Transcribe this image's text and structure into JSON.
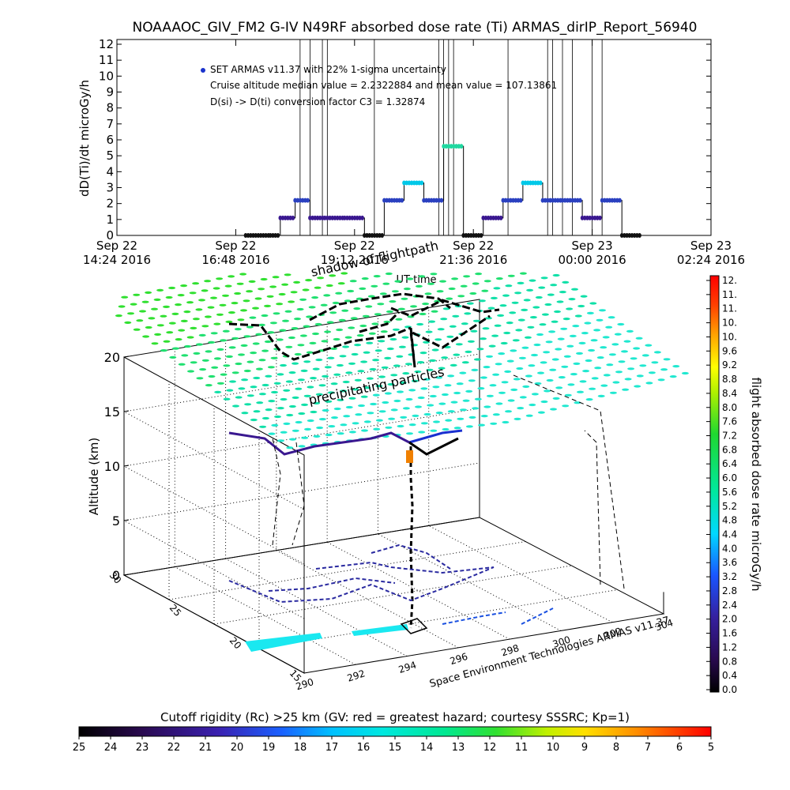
{
  "chart_data": [
    {
      "type": "line",
      "title": "NOAAAOC_GIV_FM2 G-IV   N49RF  absorbed dose rate (Ti) ARMAS_dirIP_Report_56940",
      "ylabel": "dD(Ti)/dt microGy/h",
      "xlabel": "UT time",
      "ylim": [
        0,
        12
      ],
      "yticks": [
        "0",
        "1",
        "2",
        "3",
        "4",
        "5",
        "6",
        "7",
        "8",
        "9",
        "10",
        "11",
        "12"
      ],
      "xticks": [
        {
          "date": "Sep 22",
          "time": "14:24 2016"
        },
        {
          "date": "Sep 22",
          "time": "16:48 2016"
        },
        {
          "date": "Sep 22",
          "time": "19:12 2016"
        },
        {
          "date": "Sep 22",
          "time": "21:36 2016"
        },
        {
          "date": "Sep 23",
          "time": "00:00 2016"
        },
        {
          "date": "Sep 23",
          "time": "02:24 2016"
        }
      ],
      "legend": [
        "SET ARMAS v11.37 with 22% 1-sigma uncertainty",
        "Cruise altitude median value = 2.2322884 and mean value = 107.13861",
        "D(si) -> D(ti) conversion factor C3 = 1.32874"
      ],
      "series": [
        {
          "name": "SET ARMAS v11.37 with 22% 1-sigma uncertainty",
          "x_hours": [
            17.0,
            17.5,
            17.7,
            18.0,
            18.3,
            18.6,
            19.0,
            19.4,
            19.8,
            20.2,
            20.6,
            21.0,
            21.4,
            21.8,
            22.2,
            22.6,
            23.0,
            23.4,
            23.8,
            24.2,
            24.6,
            25.0
          ],
          "y": [
            0.0,
            0.0,
            1.1,
            2.2,
            1.1,
            1.1,
            1.1,
            0.0,
            2.2,
            3.3,
            2.2,
            5.6,
            0.0,
            1.1,
            2.2,
            3.3,
            2.2,
            2.2,
            1.1,
            2.2,
            0.0,
            0.0
          ]
        }
      ]
    },
    {
      "type": "scatter",
      "title": "",
      "subtitle": "Cutoff rigidity (Rc) >25 km (GV: red = greatest hazard; courtesy SSSRC; Kp=1)",
      "zlabel": "Altitude (km)",
      "zticks": [
        "0",
        "5",
        "10",
        "15",
        "20"
      ],
      "xticks": [
        "290",
        "292",
        "294",
        "296",
        "298",
        "300",
        "302",
        "304"
      ],
      "yticks": [
        "15",
        "20",
        "25",
        "30"
      ],
      "annotations": [
        "shadow of flightpath",
        "precipitating particles"
      ],
      "credit": "Space Environment Technologies ARMAS v11.37",
      "colorbar_dose": {
        "label": "flight absorbed dose rate microGy/h",
        "ticks": [
          "0.0",
          "0.4",
          "0.8",
          "1.2",
          "1.6",
          "2.0",
          "2.4",
          "2.8",
          "3.2",
          "3.6",
          "4.0",
          "4.4",
          "4.8",
          "5.2",
          "5.6",
          "6.0",
          "6.4",
          "6.8",
          "7.2",
          "7.6",
          "8.0",
          "8.4",
          "8.8",
          "9.2",
          "9.6",
          "10.",
          "10.",
          "11.",
          "11.",
          "12."
        ]
      },
      "colorbar_rc": {
        "ticks": [
          "25",
          "24",
          "23",
          "22",
          "21",
          "20",
          "19",
          "18",
          "17",
          "16",
          "15",
          "14",
          "13",
          "12",
          "11",
          "10",
          "9",
          "8",
          "7",
          "6",
          "5"
        ]
      }
    }
  ],
  "colors": {
    "series": "#1a33cc",
    "dose_low": "#000000",
    "dose_mid": "#00e0d0",
    "dose_high": "#ff0000",
    "cutoff_surface": "#33e0b0"
  }
}
